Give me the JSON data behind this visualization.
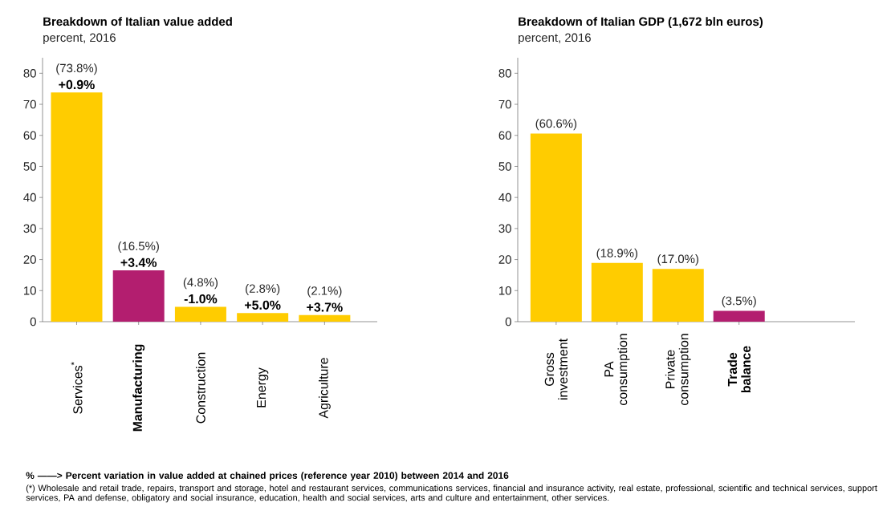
{
  "chart_data": [
    {
      "type": "bar",
      "title": "Breakdown of Italian value added",
      "subtitle": "percent, 2016",
      "categories": [
        "Services$^{*}$",
        "**Manufacturing**",
        "Construction",
        "Energy",
        "Agriculture"
      ],
      "values": [
        73.8,
        16.5,
        4.8,
        2.8,
        2.1
      ],
      "colors": [
        "#ffcc00",
        "#b31e6f",
        "#ffcc00",
        "#ffcc00",
        "#ffcc00"
      ],
      "value_labels": [
        "(73.8%)",
        "(16.5%)",
        "(4.8%)",
        "(2.8%)",
        "(2.1%)"
      ],
      "ylim": [
        0,
        85
      ],
      "yticks": [
        0,
        10,
        20,
        30,
        40,
        50,
        60,
        70,
        80
      ],
      "annotations": [
        {
          "text": "+0.9%",
          "x": "Services$^{*}$",
          "y": 73.8
        },
        {
          "text": "+3.4%",
          "x": "**Manufacturing**",
          "y": 16.5
        },
        {
          "text": "-1.0%",
          "x": "Construction",
          "y": 4.8
        },
        {
          "text": "+5.0%",
          "x": "Energy",
          "y": 2.8
        },
        {
          "text": "+3.7%",
          "x": "Agriculture",
          "y": 2.1
        },
        "% ——> Percent variation in value added at chained prices (reference year 2010) between 2014 and 2016",
        "(*) Wholesale and retail trade, repairs, transport and storage, hotel and restaurant services, communications services, financial and insurance activity, real estate, professional, scientific and technical services, support services, PA and defense, obligatory and social insurance, education, health and social services, arts and culture and entertainment, other services."
      ]
    },
    {
      "type": "bar",
      "title": "Breakdown of Italian GDP (1,672 bln euros)",
      "subtitle": "percent, 2016",
      "categories": [
        "Gross investment",
        "PA consumption",
        "Private consumption",
        "**Trade balance**"
      ],
      "values": [
        60.6,
        18.9,
        17.0,
        3.5
      ],
      "colors": [
        "#ffcc00",
        "#ffcc00",
        "#ffcc00",
        "#b31e6f"
      ],
      "value_labels": [
        "(60.6%)",
        "(18.9%)",
        "(17.0%)",
        "(3.5%)"
      ],
      "ylim": [
        0,
        85
      ],
      "yticks": [
        0,
        10,
        20,
        30,
        40,
        50,
        60,
        70,
        80
      ]
    }
  ]
}
